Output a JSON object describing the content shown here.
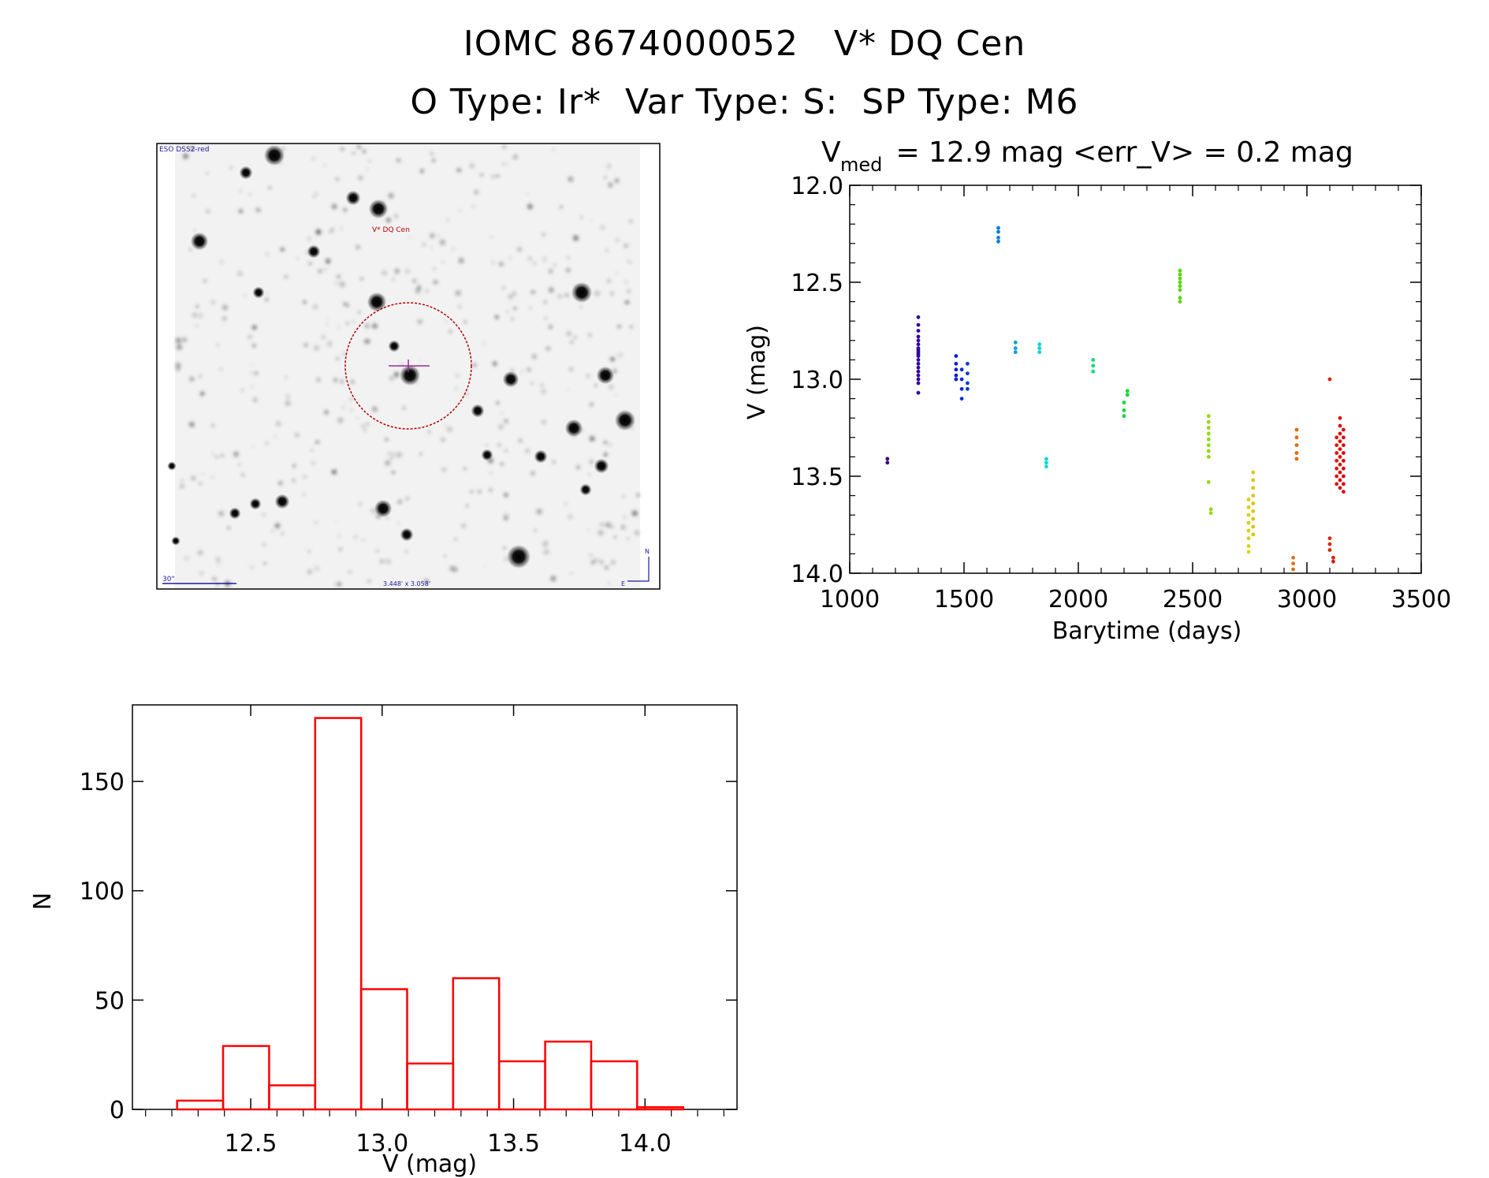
{
  "header": {
    "title_line1": "IOMC 8674000052   V* DQ Cen",
    "title_line2": "O Type: Ir*  Var Type: S:  SP Type: M6"
  },
  "finder_chart": {
    "survey_label": "ESO DSS2-red",
    "target_label": "V* DQ Cen",
    "scale_label": "30\"",
    "fov_label": "3.448' x 3.058'",
    "north_label": "N",
    "east_label": "E",
    "circle_color": "#b00000",
    "cross_color": "#9a2a9a",
    "label_color": "#1a1aa0"
  },
  "chart_data": [
    {
      "type": "scatter",
      "title": "V_med = 12.9 mag <err_V> = 0.2 mag",
      "title_parts": {
        "prefix": "V",
        "subscript": "med",
        "rest": " = 12.9 mag <err_V> = 0.2 mag"
      },
      "xlabel": "Barytime (days)",
      "ylabel": "V (mag)",
      "xlim": [
        1000,
        3500
      ],
      "ylim": [
        14.0,
        12.0
      ],
      "y_inverted": true,
      "xticks": [
        1000,
        1500,
        2000,
        2500,
        3000,
        3500
      ],
      "yticks": [
        12.0,
        12.5,
        13.0,
        13.5,
        14.0
      ],
      "xtick_labels": [
        "1000",
        "1500",
        "2000",
        "2500",
        "3000",
        "3500"
      ],
      "ytick_labels": [
        "12.0",
        "12.5",
        "13.0",
        "13.5",
        "14.0"
      ],
      "color_scale": "time-rainbow (dark purple to red)",
      "groups": [
        {
          "x": 1165,
          "y": [
            13.41,
            13.43
          ]
        },
        {
          "x": 1300,
          "y": [
            12.68,
            12.72,
            12.75,
            12.78,
            12.8,
            12.82,
            12.84,
            12.85,
            12.86,
            12.87,
            12.88,
            12.9,
            12.92,
            12.94,
            12.96,
            12.98,
            13.0,
            13.02,
            13.07
          ]
        },
        {
          "x": 1465,
          "y": [
            12.88,
            12.92,
            12.95,
            12.98,
            13.0
          ]
        },
        {
          "x": 1490,
          "y": [
            12.95,
            13.0,
            13.05,
            13.1
          ]
        },
        {
          "x": 1515,
          "y": [
            12.92,
            12.97,
            13.02,
            13.05
          ]
        },
        {
          "x": 1650,
          "y": [
            12.22,
            12.24,
            12.27,
            12.29
          ]
        },
        {
          "x": 1725,
          "y": [
            12.81,
            12.84,
            12.86
          ]
        },
        {
          "x": 1830,
          "y": [
            12.82,
            12.84,
            12.86
          ]
        },
        {
          "x": 1860,
          "y": [
            13.41,
            13.43,
            13.45
          ]
        },
        {
          "x": 2065,
          "y": [
            12.9,
            12.93,
            12.96
          ]
        },
        {
          "x": 2200,
          "y": [
            13.12,
            13.16,
            13.19
          ]
        },
        {
          "x": 2215,
          "y": [
            13.06,
            13.08
          ]
        },
        {
          "x": 2445,
          "y": [
            12.44,
            12.46,
            12.48,
            12.5,
            12.52,
            12.54,
            12.58,
            12.6
          ]
        },
        {
          "x": 2570,
          "y": [
            13.19,
            13.22,
            13.25,
            13.28,
            13.31,
            13.34,
            13.37,
            13.4,
            13.53
          ]
        },
        {
          "x": 2580,
          "y": [
            13.67,
            13.69
          ]
        },
        {
          "x": 2745,
          "y": [
            13.62,
            13.66,
            13.7,
            13.74,
            13.78,
            13.82,
            13.86,
            13.89
          ]
        },
        {
          "x": 2765,
          "y": [
            13.48,
            13.52,
            13.56,
            13.6,
            13.64,
            13.68,
            13.72,
            13.76,
            13.8
          ]
        },
        {
          "x": 2940,
          "y": [
            13.92,
            13.95,
            13.98
          ]
        },
        {
          "x": 2955,
          "y": [
            13.26,
            13.3,
            13.34,
            13.38,
            13.41
          ]
        },
        {
          "x": 3100,
          "y": [
            13.0,
            13.82,
            13.85,
            13.88
          ]
        },
        {
          "x": 3115,
          "y": [
            13.92,
            13.94
          ]
        },
        {
          "x": 3130,
          "y": [
            13.3,
            13.34,
            13.38,
            13.42,
            13.46,
            13.5,
            13.54
          ]
        },
        {
          "x": 3145,
          "y": [
            13.2,
            13.24,
            13.28,
            13.32,
            13.36,
            13.4,
            13.44,
            13.48,
            13.52,
            13.56
          ]
        },
        {
          "x": 3160,
          "y": [
            13.26,
            13.3,
            13.34,
            13.38,
            13.42,
            13.46,
            13.5,
            13.54,
            13.58
          ]
        }
      ]
    },
    {
      "type": "bar",
      "subtype": "histogram",
      "xlabel": "V (mag)",
      "ylabel": "N",
      "xlim": [
        12.05,
        14.35
      ],
      "ylim": [
        0,
        185
      ],
      "xticks": [
        12.5,
        13.0,
        13.5,
        14.0
      ],
      "yticks": [
        0,
        50,
        100,
        150
      ],
      "xtick_labels": [
        "12.5",
        "13.0",
        "13.5",
        "14.0"
      ],
      "ytick_labels": [
        "0",
        "50",
        "100",
        "150"
      ],
      "bin_edges": [
        12.22,
        12.395,
        12.57,
        12.745,
        12.92,
        13.095,
        13.27,
        13.445,
        13.62,
        13.795,
        13.97,
        14.145
      ],
      "values": [
        4,
        29,
        11,
        179,
        55,
        21,
        60,
        22,
        31,
        22,
        1
      ],
      "bar_color": "#ff0000"
    }
  ]
}
